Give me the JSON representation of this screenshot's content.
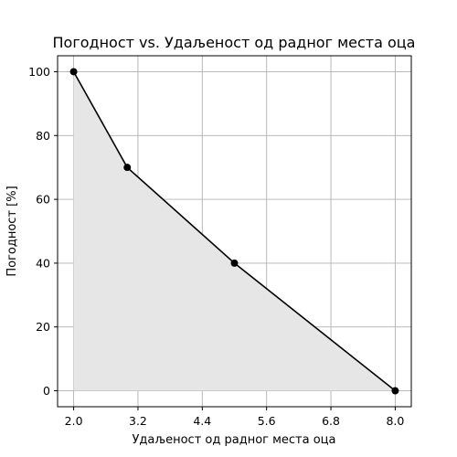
{
  "chart_data": {
    "type": "line",
    "title": "Погодност vs. Удаљеност од радног места оца",
    "xlabel": "Удаљеност од радног места оца",
    "ylabel": "Погодност [%]",
    "x": [
      2.0,
      3.0,
      5.0,
      8.0
    ],
    "series": [
      {
        "values": [
          100,
          70,
          40,
          0
        ]
      }
    ],
    "xlim": [
      1.7,
      8.3
    ],
    "ylim": [
      -5,
      105
    ],
    "xticks": [
      2.0,
      3.2,
      4.4,
      5.6,
      6.8,
      8.0
    ],
    "xtick_labels": [
      "2.0",
      "3.2",
      "4.4",
      "5.6",
      "6.8",
      "8.0"
    ],
    "yticks": [
      0,
      20,
      40,
      60,
      80,
      100
    ],
    "ytick_labels": [
      "0",
      "20",
      "40",
      "60",
      "80",
      "100"
    ],
    "grid": true,
    "fill_under": true,
    "line_color": "#000000",
    "marker_color": "#000000",
    "fill_color": "#e6e6e6"
  }
}
